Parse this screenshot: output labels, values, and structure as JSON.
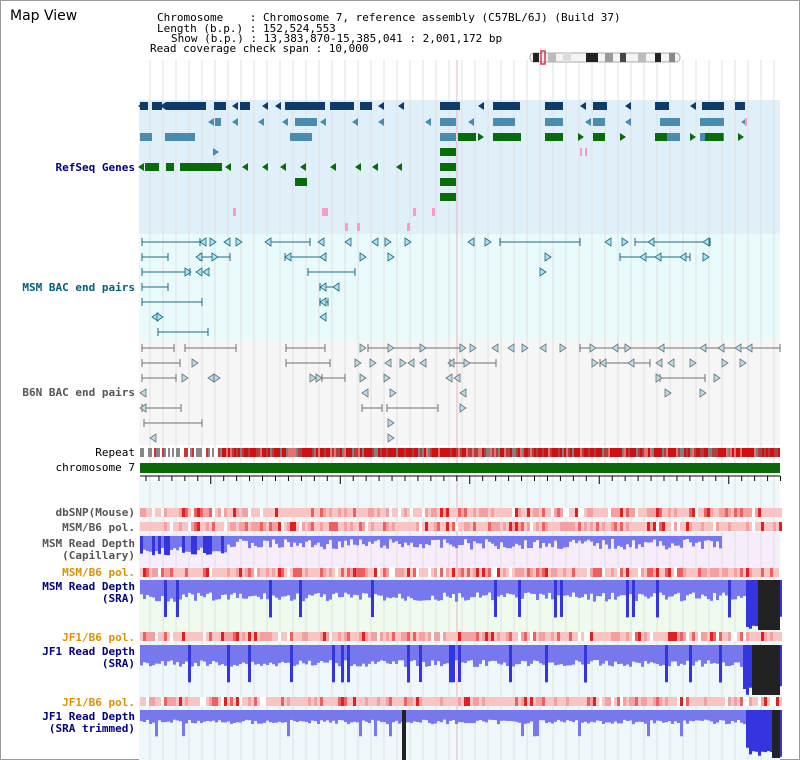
{
  "view_title": "Map View",
  "info": {
    "chromosome": "Chromosome    : Chromosome 7, reference assembly (C57BL/6J) (Build 37)",
    "length": "Length (b.p.) : 152,524,553",
    "show": "Show (b.p.) : 13,383,870-15,385,041 : 2,001,172 bp",
    "span": "Read coverage check span : 10,000"
  },
  "tracks": {
    "refseq": "RefSeq Genes",
    "msm_bac": "MSM BAC end pairs",
    "b6n_bac": "B6N BAC end pairs",
    "repeat": "Repeat",
    "chromosome": "chromosome 7",
    "dbsnp": "dbSNP(Mouse)",
    "msm_pol": "MSM/B6 pol.",
    "msm_depth_cap": "MSM Read Depth",
    "msm_depth_cap_sub": "(Capillary)",
    "msm_pol2": "MSM/B6 pol.",
    "msm_depth_sra": "MSM Read Depth",
    "msm_depth_sra_sub": "(SRA)",
    "jf1_pol": "JF1/B6 pol.",
    "jf1_depth_sra": "JF1 Read Depth",
    "jf1_depth_sra_sub": "(SRA)",
    "jf1_pol2": "JF1/B6 pol.",
    "jf1_depth_trim": "JF1 Read Depth",
    "jf1_depth_trim_sub": "(SRA trimmed)"
  },
  "axis": {
    "ticks": [
      "13600000",
      "14000000",
      "14400000",
      "14800000",
      "15200000"
    ]
  },
  "colors": {
    "refseq_bg": "#dff0fa",
    "msm_bac_bg": "#e8fafa",
    "b6n_bac_bg": "#f6f6f6",
    "gene_navy": "#0f3a6a",
    "gene_steel": "#4a8bb0",
    "gene_green": "#0a6b0a",
    "bac_teal": "#1a6a80",
    "bac_gray": "#707070",
    "chrom_green": "#0a6a0a",
    "depth_blue": "#3333ee",
    "pol_red": "#e02020",
    "label_navy": "#000080",
    "label_teal": "#006080",
    "label_orange": "#e09000"
  }
}
